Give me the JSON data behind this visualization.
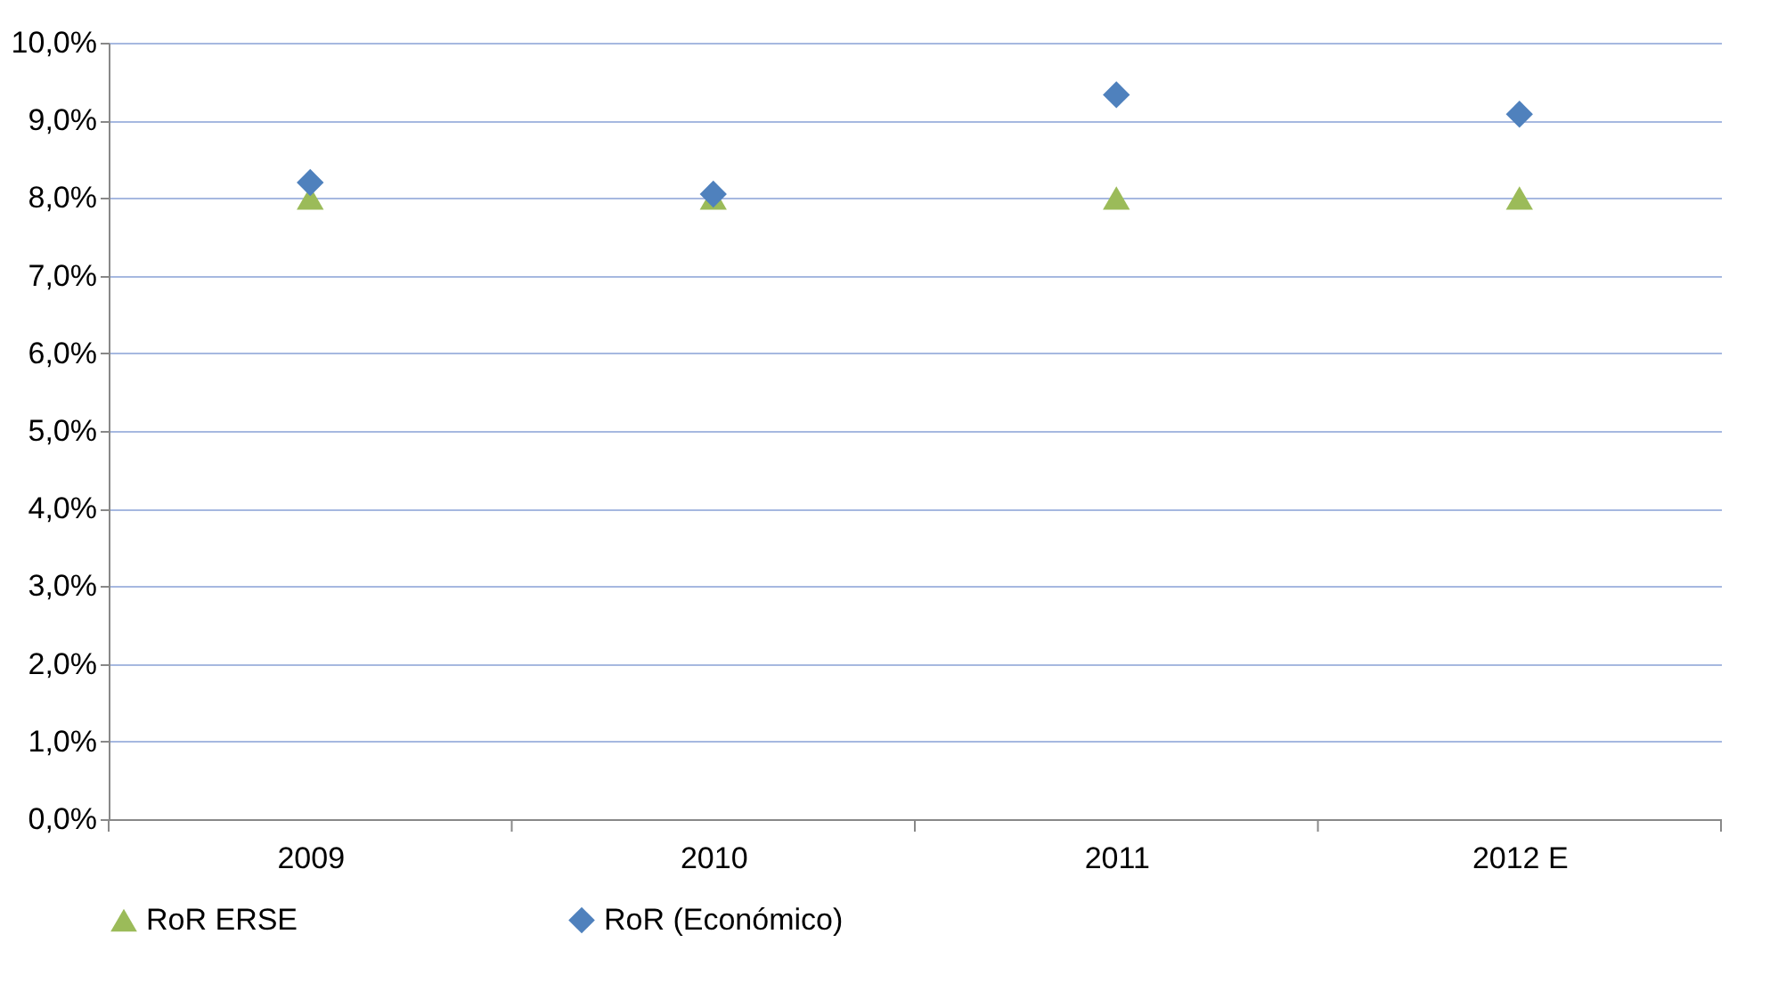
{
  "chart_data": {
    "type": "scatter",
    "categories": [
      "2009",
      "2010",
      "2011",
      "2012 E"
    ],
    "series": [
      {
        "name": "RoR ERSE",
        "color": "#9bbb59",
        "marker": "triangle",
        "values": [
          8.0,
          8.0,
          8.0,
          8.0
        ]
      },
      {
        "name": "RoR (Económico)",
        "color": "#4f81bd",
        "marker": "diamond",
        "values": [
          8.2,
          8.05,
          9.33,
          9.08
        ]
      }
    ],
    "ylim": [
      0,
      10
    ],
    "yticks": [
      {
        "value": 0,
        "label": "0,0%"
      },
      {
        "value": 1,
        "label": "1,0%"
      },
      {
        "value": 2,
        "label": "2,0%"
      },
      {
        "value": 3,
        "label": "3,0%"
      },
      {
        "value": 4,
        "label": "4,0%"
      },
      {
        "value": 5,
        "label": "5,0%"
      },
      {
        "value": 6,
        "label": "6,0%"
      },
      {
        "value": 7,
        "label": "7,0%"
      },
      {
        "value": 8,
        "label": "8,0%"
      },
      {
        "value": 9,
        "label": "9,0%"
      },
      {
        "value": 10,
        "label": "10,0%"
      }
    ],
    "grid": "y",
    "legend": "bottom"
  }
}
